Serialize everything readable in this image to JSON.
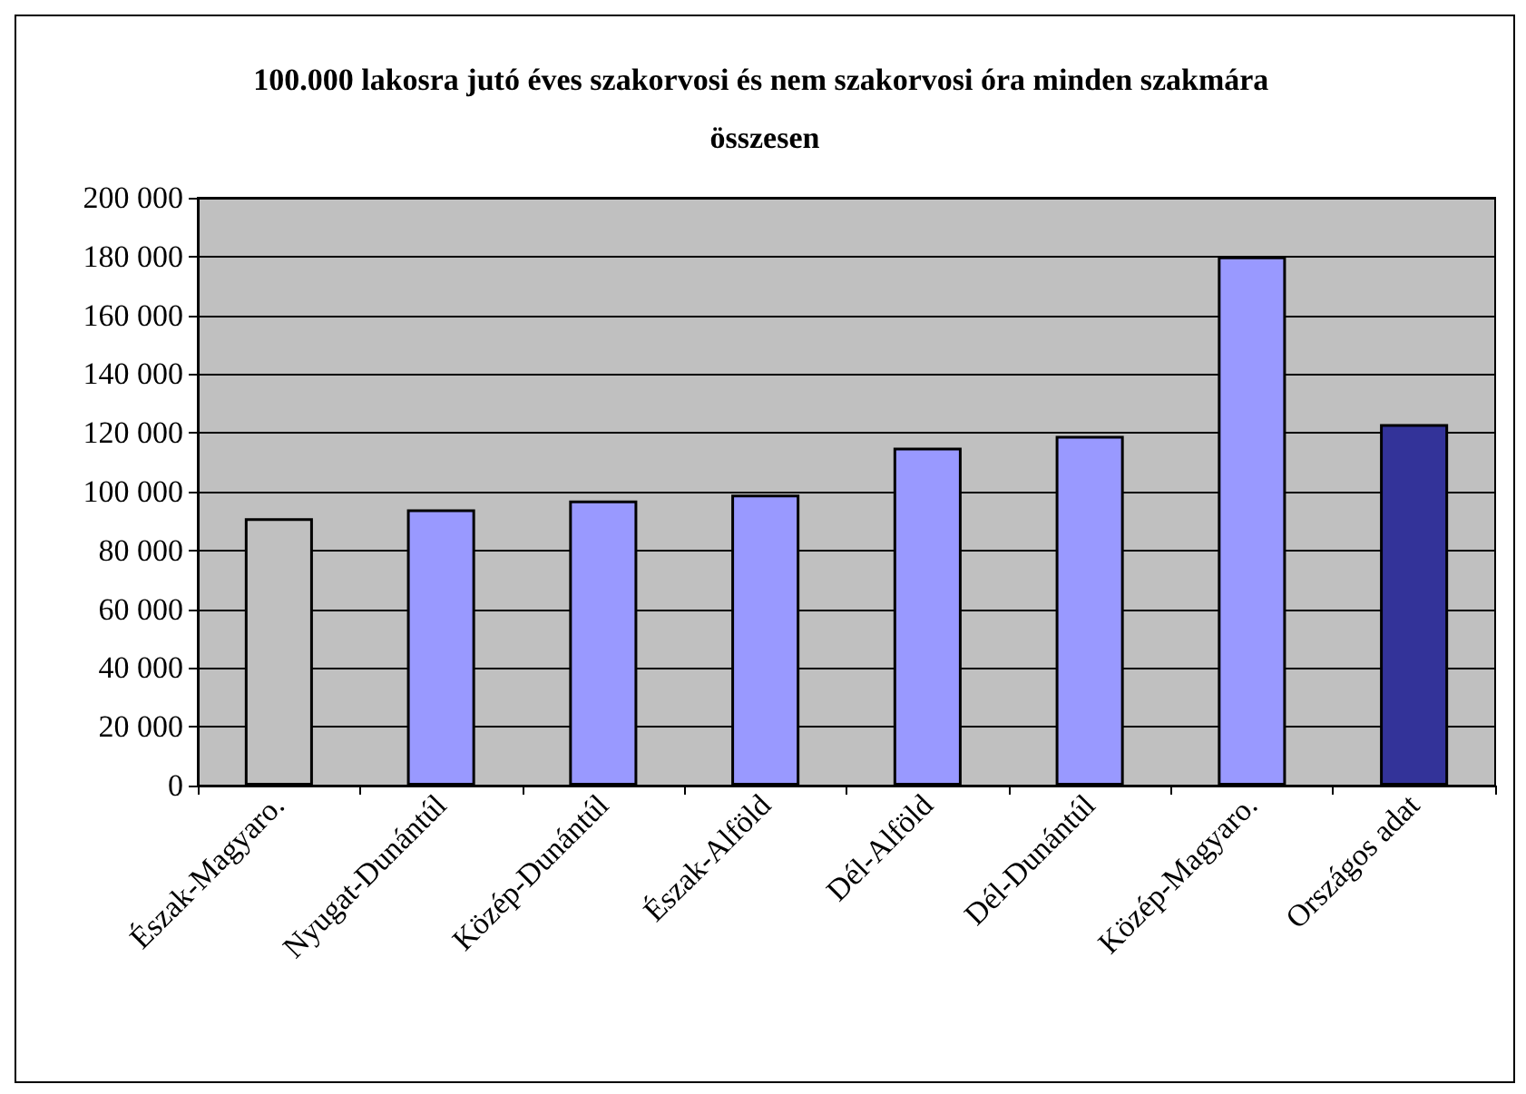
{
  "chart_data": {
    "type": "bar",
    "title": "100.000 lakosra jutó éves szakorvosi és nem szakorvosi óra minden szakmára összesen",
    "categories": [
      "Észak-Magyaro.",
      "Nyugat-Dunántúl",
      "Közép-Dunántúl",
      "Észak-Alföld",
      "Dél-Alföld",
      "Dél-Dunántúl",
      "Közép-Magyaro.",
      "Országos adat"
    ],
    "values": [
      91000,
      94000,
      97000,
      99000,
      115000,
      119000,
      180000,
      123000
    ],
    "colors": [
      "#c0c0c0",
      "#9999ff",
      "#9999ff",
      "#9999ff",
      "#9999ff",
      "#9999ff",
      "#9999ff",
      "#333399"
    ],
    "ylim": [
      0,
      200000
    ],
    "yticks": [
      {
        "value": 0,
        "label": "0"
      },
      {
        "value": 20000,
        "label": "20 000"
      },
      {
        "value": 40000,
        "label": "40 000"
      },
      {
        "value": 60000,
        "label": "60 000"
      },
      {
        "value": 80000,
        "label": "80 000"
      },
      {
        "value": 100000,
        "label": "100 000"
      },
      {
        "value": 120000,
        "label": "120 000"
      },
      {
        "value": 140000,
        "label": "140 000"
      },
      {
        "value": 160000,
        "label": "160 000"
      },
      {
        "value": 180000,
        "label": "180 000"
      },
      {
        "value": 200000,
        "label": "200 000"
      }
    ],
    "grid": "y"
  }
}
